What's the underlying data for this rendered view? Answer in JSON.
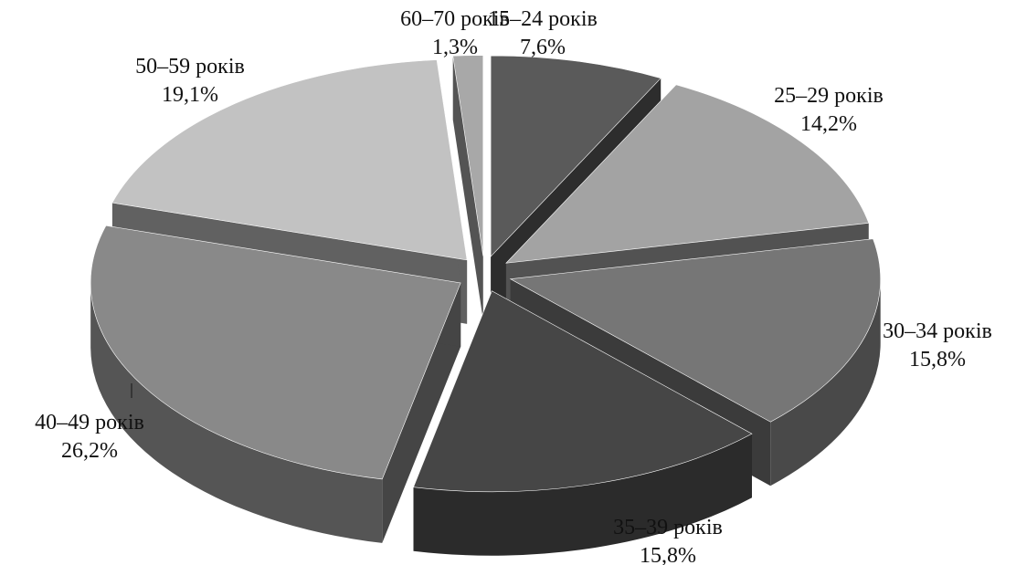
{
  "chart_data": {
    "type": "pie",
    "style": "3d-exploded",
    "title": "",
    "slices": [
      {
        "label": "15–24 років",
        "value": 7.6,
        "value_label": "7,6%",
        "color": "#5a5a5a"
      },
      {
        "label": "25–29 років",
        "value": 14.2,
        "value_label": "14,2%",
        "color": "#a3a3a3"
      },
      {
        "label": "30–34 років",
        "value": 15.8,
        "value_label": "15,8%",
        "color": "#767676"
      },
      {
        "label": "35–39 років",
        "value": 15.8,
        "value_label": "15,8%",
        "color": "#464646"
      },
      {
        "label": "40–49 років",
        "value": 26.2,
        "value_label": "26,2%",
        "color": "#898989"
      },
      {
        "label": "50–59 років",
        "value": 19.1,
        "value_label": "19,1%",
        "color": "#c2c2c2"
      },
      {
        "label": "60–70 років",
        "value": 1.3,
        "value_label": "1,3%",
        "color": "#a8a8a8"
      }
    ]
  }
}
